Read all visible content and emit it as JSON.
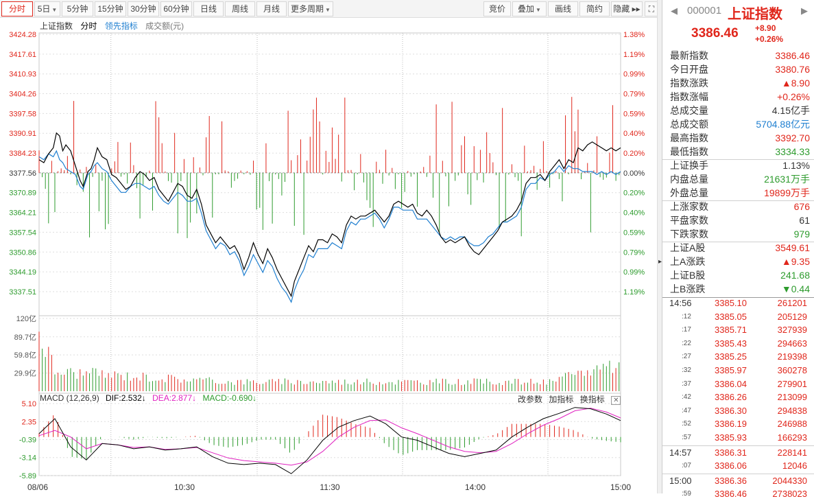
{
  "toolbar": {
    "left": [
      {
        "label": "分时",
        "active": true
      },
      {
        "label": "5日",
        "caret": true
      },
      {
        "label": "5分钟"
      },
      {
        "label": "15分钟"
      },
      {
        "label": "30分钟"
      },
      {
        "label": "60分钟"
      },
      {
        "label": "日线"
      },
      {
        "label": "周线"
      },
      {
        "label": "月线"
      },
      {
        "label": "更多周期",
        "caret": true
      }
    ],
    "right": [
      {
        "label": "竞价"
      },
      {
        "label": "叠加",
        "caret": true
      },
      {
        "label": "画线"
      },
      {
        "label": "简约"
      },
      {
        "label": "隐藏 ▸▸"
      }
    ],
    "fullscreen_icon": "expand-icon"
  },
  "legend": {
    "name": "上证指数",
    "mode": "分时",
    "lead": "领先指标",
    "volume_label": "成交额(元)"
  },
  "macd": {
    "label": "MACD (12,26,9)",
    "dif": "DIF:2.532↓",
    "dea": "DEA:2.877↓",
    "macd": "MACD:-0.690↓",
    "tools": [
      "改参数",
      "加指标",
      "换指标"
    ],
    "close_icon": "close-icon"
  },
  "colors": {
    "up": "#e0261b",
    "down": "#2d9b2d",
    "price": "#000000",
    "lead": "#1f7fd0",
    "dea": "#e020c0"
  },
  "chart_data": {
    "type": "line",
    "time_labels": [
      "08/06",
      "10:30",
      "11:30",
      "14:00",
      "15:00"
    ],
    "price_axis": {
      "ticks": [
        "3424.28",
        "3417.61",
        "3410.93",
        "3404.26",
        "3397.58",
        "3390.91",
        "3384.23",
        "3377.56",
        "3370.89",
        "3364.21",
        "3357.54",
        "3350.86",
        "3344.19",
        "3337.51"
      ],
      "pct_ticks": [
        "1.38%",
        "1.19%",
        "0.99%",
        "0.79%",
        "0.59%",
        "0.40%",
        "0.20%",
        "0.00%",
        "0.20%",
        "0.40%",
        "0.59%",
        "0.79%",
        "0.99%",
        "1.19%"
      ],
      "prev_close": 3377.56,
      "ylim": [
        3334.5,
        3424.28
      ]
    },
    "volume_axis": {
      "ticks": [
        "120亿",
        "89.7亿",
        "59.8亿",
        "29.9亿"
      ],
      "ylim": [
        0,
        120
      ]
    },
    "macd_axis": {
      "ticks": [
        "5.10",
        "2.35",
        "-0.39",
        "-3.14",
        "-5.89"
      ],
      "ylim": [
        -5.89,
        5.1
      ]
    },
    "price_series": [
      [
        0,
        3382
      ],
      [
        3,
        3381
      ],
      [
        6,
        3384
      ],
      [
        9,
        3386
      ],
      [
        11,
        3391
      ],
      [
        13,
        3390
      ],
      [
        15,
        3385
      ],
      [
        17,
        3387
      ],
      [
        20,
        3385
      ],
      [
        23,
        3380
      ],
      [
        26,
        3375
      ],
      [
        28,
        3373
      ],
      [
        31,
        3378
      ],
      [
        33,
        3379
      ],
      [
        35,
        3382
      ],
      [
        37,
        3386
      ],
      [
        40,
        3383
      ],
      [
        43,
        3382
      ],
      [
        46,
        3377
      ],
      [
        49,
        3376
      ],
      [
        52,
        3374
      ],
      [
        55,
        3372
      ],
      [
        58,
        3373
      ],
      [
        61,
        3376
      ],
      [
        64,
        3378
      ],
      [
        67,
        3377
      ],
      [
        70,
        3375
      ],
      [
        73,
        3376
      ],
      [
        76,
        3372
      ],
      [
        79,
        3370
      ],
      [
        82,
        3368
      ],
      [
        85,
        3371
      ],
      [
        88,
        3374
      ],
      [
        91,
        3373
      ],
      [
        94,
        3370
      ],
      [
        97,
        3369
      ],
      [
        100,
        3372
      ],
      [
        103,
        3367
      ],
      [
        106,
        3360
      ],
      [
        109,
        3357
      ],
      [
        112,
        3354
      ],
      [
        115,
        3356
      ],
      [
        118,
        3354
      ],
      [
        121,
        3352
      ],
      [
        124,
        3353
      ],
      [
        127,
        3350
      ],
      [
        130,
        3345
      ],
      [
        133,
        3349
      ],
      [
        136,
        3354
      ],
      [
        139,
        3350
      ],
      [
        142,
        3347
      ],
      [
        145,
        3352
      ],
      [
        148,
        3349
      ],
      [
        151,
        3345
      ],
      [
        154,
        3342
      ],
      [
        157,
        3339
      ],
      [
        160,
        3336
      ],
      [
        162,
        3341
      ],
      [
        165,
        3345
      ],
      [
        168,
        3349
      ],
      [
        171,
        3353
      ],
      [
        174,
        3351
      ],
      [
        177,
        3355
      ],
      [
        180,
        3355
      ],
      [
        183,
        3354
      ],
      [
        186,
        3357
      ],
      [
        189,
        3356
      ],
      [
        192,
        3354
      ],
      [
        195,
        3360
      ],
      [
        198,
        3363
      ],
      [
        201,
        3362
      ],
      [
        204,
        3363
      ],
      [
        207,
        3363
      ],
      [
        210,
        3364
      ],
      [
        213,
        3365
      ],
      [
        216,
        3363
      ],
      [
        219,
        3361
      ],
      [
        222,
        3363
      ],
      [
        225,
        3367
      ],
      [
        228,
        3368
      ],
      [
        231,
        3367
      ],
      [
        234,
        3366
      ],
      [
        237,
        3367
      ],
      [
        240,
        3364
      ],
      [
        243,
        3363
      ],
      [
        246,
        3365
      ],
      [
        249,
        3363
      ],
      [
        252,
        3360
      ],
      [
        255,
        3356
      ],
      [
        258,
        3354
      ],
      [
        261,
        3355
      ],
      [
        264,
        3354
      ],
      [
        267,
        3355
      ],
      [
        270,
        3356
      ],
      [
        273,
        3353
      ],
      [
        276,
        3351
      ],
      [
        279,
        3350
      ],
      [
        282,
        3352
      ],
      [
        285,
        3354
      ],
      [
        288,
        3356
      ],
      [
        291,
        3358
      ],
      [
        294,
        3361
      ],
      [
        297,
        3362
      ],
      [
        300,
        3363
      ],
      [
        303,
        3365
      ],
      [
        306,
        3368
      ],
      [
        309,
        3374
      ],
      [
        312,
        3376
      ],
      [
        315,
        3376
      ],
      [
        318,
        3377
      ],
      [
        321,
        3375
      ],
      [
        324,
        3378
      ],
      [
        327,
        3380
      ],
      [
        330,
        3382
      ],
      [
        333,
        3379
      ],
      [
        336,
        3382
      ],
      [
        339,
        3381
      ],
      [
        342,
        3386
      ],
      [
        345,
        3385
      ],
      [
        348,
        3387
      ],
      [
        351,
        3388
      ],
      [
        354,
        3387
      ],
      [
        357,
        3386
      ],
      [
        360,
        3385
      ],
      [
        363,
        3386
      ],
      [
        366,
        3385
      ],
      [
        369,
        3386
      ]
    ],
    "lead_series": [
      [
        0,
        3383
      ],
      [
        3,
        3382
      ],
      [
        6,
        3384
      ],
      [
        9,
        3383
      ],
      [
        11,
        3385
      ],
      [
        13,
        3382
      ],
      [
        15,
        3381
      ],
      [
        17,
        3379
      ],
      [
        20,
        3378
      ],
      [
        23,
        3377
      ],
      [
        26,
        3373
      ],
      [
        28,
        3372
      ],
      [
        31,
        3377
      ],
      [
        33,
        3378
      ],
      [
        35,
        3380
      ],
      [
        37,
        3381
      ],
      [
        40,
        3379
      ],
      [
        43,
        3378
      ],
      [
        46,
        3375
      ],
      [
        49,
        3373
      ],
      [
        52,
        3371
      ],
      [
        55,
        3371
      ],
      [
        58,
        3373
      ],
      [
        61,
        3374
      ],
      [
        64,
        3374
      ],
      [
        67,
        3373
      ],
      [
        70,
        3372
      ],
      [
        73,
        3373
      ],
      [
        76,
        3370
      ],
      [
        79,
        3368
      ],
      [
        82,
        3367
      ],
      [
        85,
        3369
      ],
      [
        88,
        3371
      ],
      [
        91,
        3370
      ],
      [
        94,
        3368
      ],
      [
        97,
        3368
      ],
      [
        100,
        3369
      ],
      [
        103,
        3364
      ],
      [
        106,
        3358
      ],
      [
        109,
        3355
      ],
      [
        112,
        3352
      ],
      [
        115,
        3354
      ],
      [
        118,
        3353
      ],
      [
        121,
        3350
      ],
      [
        124,
        3351
      ],
      [
        127,
        3348
      ],
      [
        130,
        3343
      ],
      [
        133,
        3346
      ],
      [
        136,
        3350
      ],
      [
        139,
        3347
      ],
      [
        142,
        3344
      ],
      [
        145,
        3348
      ],
      [
        148,
        3346
      ],
      [
        151,
        3342
      ],
      [
        154,
        3339
      ],
      [
        157,
        3337
      ],
      [
        160,
        3334
      ],
      [
        162,
        3338
      ],
      [
        165,
        3342
      ],
      [
        168,
        3345
      ],
      [
        171,
        3350
      ],
      [
        174,
        3349
      ],
      [
        177,
        3352
      ],
      [
        180,
        3352
      ],
      [
        183,
        3352
      ],
      [
        186,
        3354
      ],
      [
        189,
        3353
      ],
      [
        192,
        3352
      ],
      [
        195,
        3358
      ],
      [
        198,
        3361
      ],
      [
        201,
        3360
      ],
      [
        204,
        3362
      ],
      [
        207,
        3362
      ],
      [
        210,
        3363
      ],
      [
        213,
        3364
      ],
      [
        216,
        3362
      ],
      [
        219,
        3359
      ],
      [
        222,
        3362
      ],
      [
        225,
        3366
      ],
      [
        228,
        3366
      ],
      [
        231,
        3365
      ],
      [
        234,
        3365
      ],
      [
        237,
        3365
      ],
      [
        240,
        3362
      ],
      [
        243,
        3362
      ],
      [
        246,
        3362
      ],
      [
        249,
        3360
      ],
      [
        252,
        3358
      ],
      [
        255,
        3356
      ],
      [
        258,
        3355
      ],
      [
        261,
        3356
      ],
      [
        264,
        3355
      ],
      [
        267,
        3356
      ],
      [
        270,
        3356
      ],
      [
        273,
        3354
      ],
      [
        276,
        3353
      ],
      [
        279,
        3353
      ],
      [
        282,
        3354
      ],
      [
        285,
        3356
      ],
      [
        288,
        3357
      ],
      [
        291,
        3359
      ],
      [
        294,
        3361
      ],
      [
        297,
        3361
      ],
      [
        300,
        3362
      ],
      [
        303,
        3363
      ],
      [
        306,
        3366
      ],
      [
        309,
        3372
      ],
      [
        312,
        3374
      ],
      [
        315,
        3374
      ],
      [
        318,
        3376
      ],
      [
        321,
        3375
      ],
      [
        324,
        3377
      ],
      [
        327,
        3378
      ],
      [
        330,
        3380
      ],
      [
        333,
        3378
      ],
      [
        336,
        3380
      ],
      [
        339,
        3379
      ],
      [
        342,
        3379
      ],
      [
        345,
        3378
      ],
      [
        348,
        3378
      ],
      [
        351,
        3378
      ],
      [
        354,
        3377
      ],
      [
        357,
        3378
      ],
      [
        360,
        3377
      ],
      [
        363,
        3378
      ],
      [
        366,
        3377
      ],
      [
        369,
        3378
      ]
    ],
    "macd_dif": [
      [
        0,
        0.5
      ],
      [
        10,
        2.8
      ],
      [
        20,
        -1.5
      ],
      [
        30,
        -3.5
      ],
      [
        40,
        -1.0
      ],
      [
        50,
        -1.2
      ],
      [
        60,
        -1.8
      ],
      [
        70,
        -1.5
      ],
      [
        80,
        -2.0
      ],
      [
        90,
        -1.8
      ],
      [
        100,
        -1.5
      ],
      [
        110,
        -3.0
      ],
      [
        120,
        -4.0
      ],
      [
        130,
        -4.2
      ],
      [
        140,
        -4.0
      ],
      [
        150,
        -4.2
      ],
      [
        160,
        -5.6
      ],
      [
        170,
        -3.5
      ],
      [
        180,
        -0.5
      ],
      [
        190,
        1.5
      ],
      [
        200,
        2.5
      ],
      [
        210,
        3.2
      ],
      [
        220,
        2.0
      ],
      [
        230,
        0.0
      ],
      [
        240,
        -0.5
      ],
      [
        250,
        -1.5
      ],
      [
        260,
        -2.5
      ],
      [
        270,
        -3.0
      ],
      [
        280,
        -2.5
      ],
      [
        290,
        -2.0
      ],
      [
        300,
        0.0
      ],
      [
        310,
        1.5
      ],
      [
        320,
        2.8
      ],
      [
        330,
        3.6
      ],
      [
        340,
        4.5
      ],
      [
        350,
        4.3
      ],
      [
        360,
        3.5
      ],
      [
        369,
        2.5
      ]
    ],
    "macd_dea": [
      [
        0,
        0.2
      ],
      [
        10,
        1.0
      ],
      [
        20,
        0.0
      ],
      [
        30,
        -1.8
      ],
      [
        40,
        -1.0
      ],
      [
        50,
        -1.2
      ],
      [
        60,
        -1.6
      ],
      [
        70,
        -1.5
      ],
      [
        80,
        -1.9
      ],
      [
        90,
        -1.8
      ],
      [
        100,
        -1.6
      ],
      [
        110,
        -2.4
      ],
      [
        120,
        -3.2
      ],
      [
        130,
        -3.6
      ],
      [
        140,
        -3.8
      ],
      [
        150,
        -4.0
      ],
      [
        160,
        -4.3
      ],
      [
        170,
        -3.8
      ],
      [
        180,
        -2.2
      ],
      [
        190,
        0.0
      ],
      [
        200,
        1.5
      ],
      [
        210,
        2.5
      ],
      [
        220,
        2.6
      ],
      [
        230,
        1.4
      ],
      [
        240,
        0.5
      ],
      [
        250,
        -0.5
      ],
      [
        260,
        -1.5
      ],
      [
        270,
        -2.2
      ],
      [
        280,
        -2.4
      ],
      [
        290,
        -2.2
      ],
      [
        300,
        -1.0
      ],
      [
        310,
        0.5
      ],
      [
        320,
        1.8
      ],
      [
        330,
        2.8
      ],
      [
        340,
        4.0
      ],
      [
        350,
        4.4
      ],
      [
        360,
        3.8
      ],
      [
        369,
        2.9
      ]
    ]
  },
  "panel": {
    "code": "000001",
    "name": "上证指数",
    "price": "3386.46",
    "change": "+8.90",
    "change_pct": "+0.26%",
    "stats": [
      {
        "label": "最新指数",
        "value": "3386.46",
        "color": "#e0261b"
      },
      {
        "label": "今日开盘",
        "value": "3380.76",
        "color": "#e0261b"
      },
      {
        "label": "指数涨跌",
        "value": "▲8.90",
        "color": "#e0261b"
      },
      {
        "label": "指数涨幅",
        "value": "+0.26%",
        "color": "#e0261b"
      },
      {
        "label": "总成交量",
        "value": "4.15亿手",
        "color": "#333333"
      },
      {
        "label": "总成交额",
        "value": "5704.88亿元",
        "color": "#1f7fd0"
      },
      {
        "label": "最高指数",
        "value": "3392.70",
        "color": "#e0261b"
      },
      {
        "label": "最低指数",
        "value": "3334.33",
        "color": "#2d9b2d"
      },
      {
        "label": "上证换手",
        "value": "1.13%",
        "color": "#333333"
      },
      {
        "label": "内盘总量",
        "value": "21631万手",
        "color": "#2d9b2d"
      },
      {
        "label": "外盘总量",
        "value": "19899万手",
        "color": "#e0261b"
      },
      {
        "label": "上涨家数",
        "value": "676",
        "color": "#e0261b"
      },
      {
        "label": "平盘家数",
        "value": "61",
        "color": "#333333"
      },
      {
        "label": "下跌家数",
        "value": "979",
        "color": "#2d9b2d"
      },
      {
        "label": "上证A股",
        "value": "3549.61",
        "color": "#e0261b"
      },
      {
        "label": "上A涨跌",
        "value": "▲9.35",
        "color": "#e0261b"
      },
      {
        "label": "上证B股",
        "value": "241.68",
        "color": "#2d9b2d"
      },
      {
        "label": "上B涨跌",
        "value": "▼0.44",
        "color": "#2d9b2d"
      }
    ],
    "ticks": [
      {
        "time": "14:56",
        "price": "3385.10",
        "vol": "261201"
      },
      {
        "time": ":12",
        "price": "3385.05",
        "vol": "205129"
      },
      {
        "time": ":17",
        "price": "3385.71",
        "vol": "327939"
      },
      {
        "time": ":22",
        "price": "3385.43",
        "vol": "294663"
      },
      {
        "time": ":27",
        "price": "3385.25",
        "vol": "219398"
      },
      {
        "time": ":32",
        "price": "3385.97",
        "vol": "360278"
      },
      {
        "time": ":37",
        "price": "3386.04",
        "vol": "279901"
      },
      {
        "time": ":42",
        "price": "3386.26",
        "vol": "213099"
      },
      {
        "time": ":47",
        "price": "3386.30",
        "vol": "294838"
      },
      {
        "time": ":52",
        "price": "3386.19",
        "vol": "246988"
      },
      {
        "time": ":57",
        "price": "3385.93",
        "vol": "166293"
      },
      {
        "time": "14:57",
        "price": "3386.31",
        "vol": "228141"
      },
      {
        "time": ":07",
        "price": "3386.06",
        "vol": "12046"
      },
      {
        "time": "15:00",
        "price": "3386.36",
        "vol": "2044330"
      },
      {
        "time": ":59",
        "price": "3386.46",
        "vol": "2738023"
      }
    ]
  }
}
